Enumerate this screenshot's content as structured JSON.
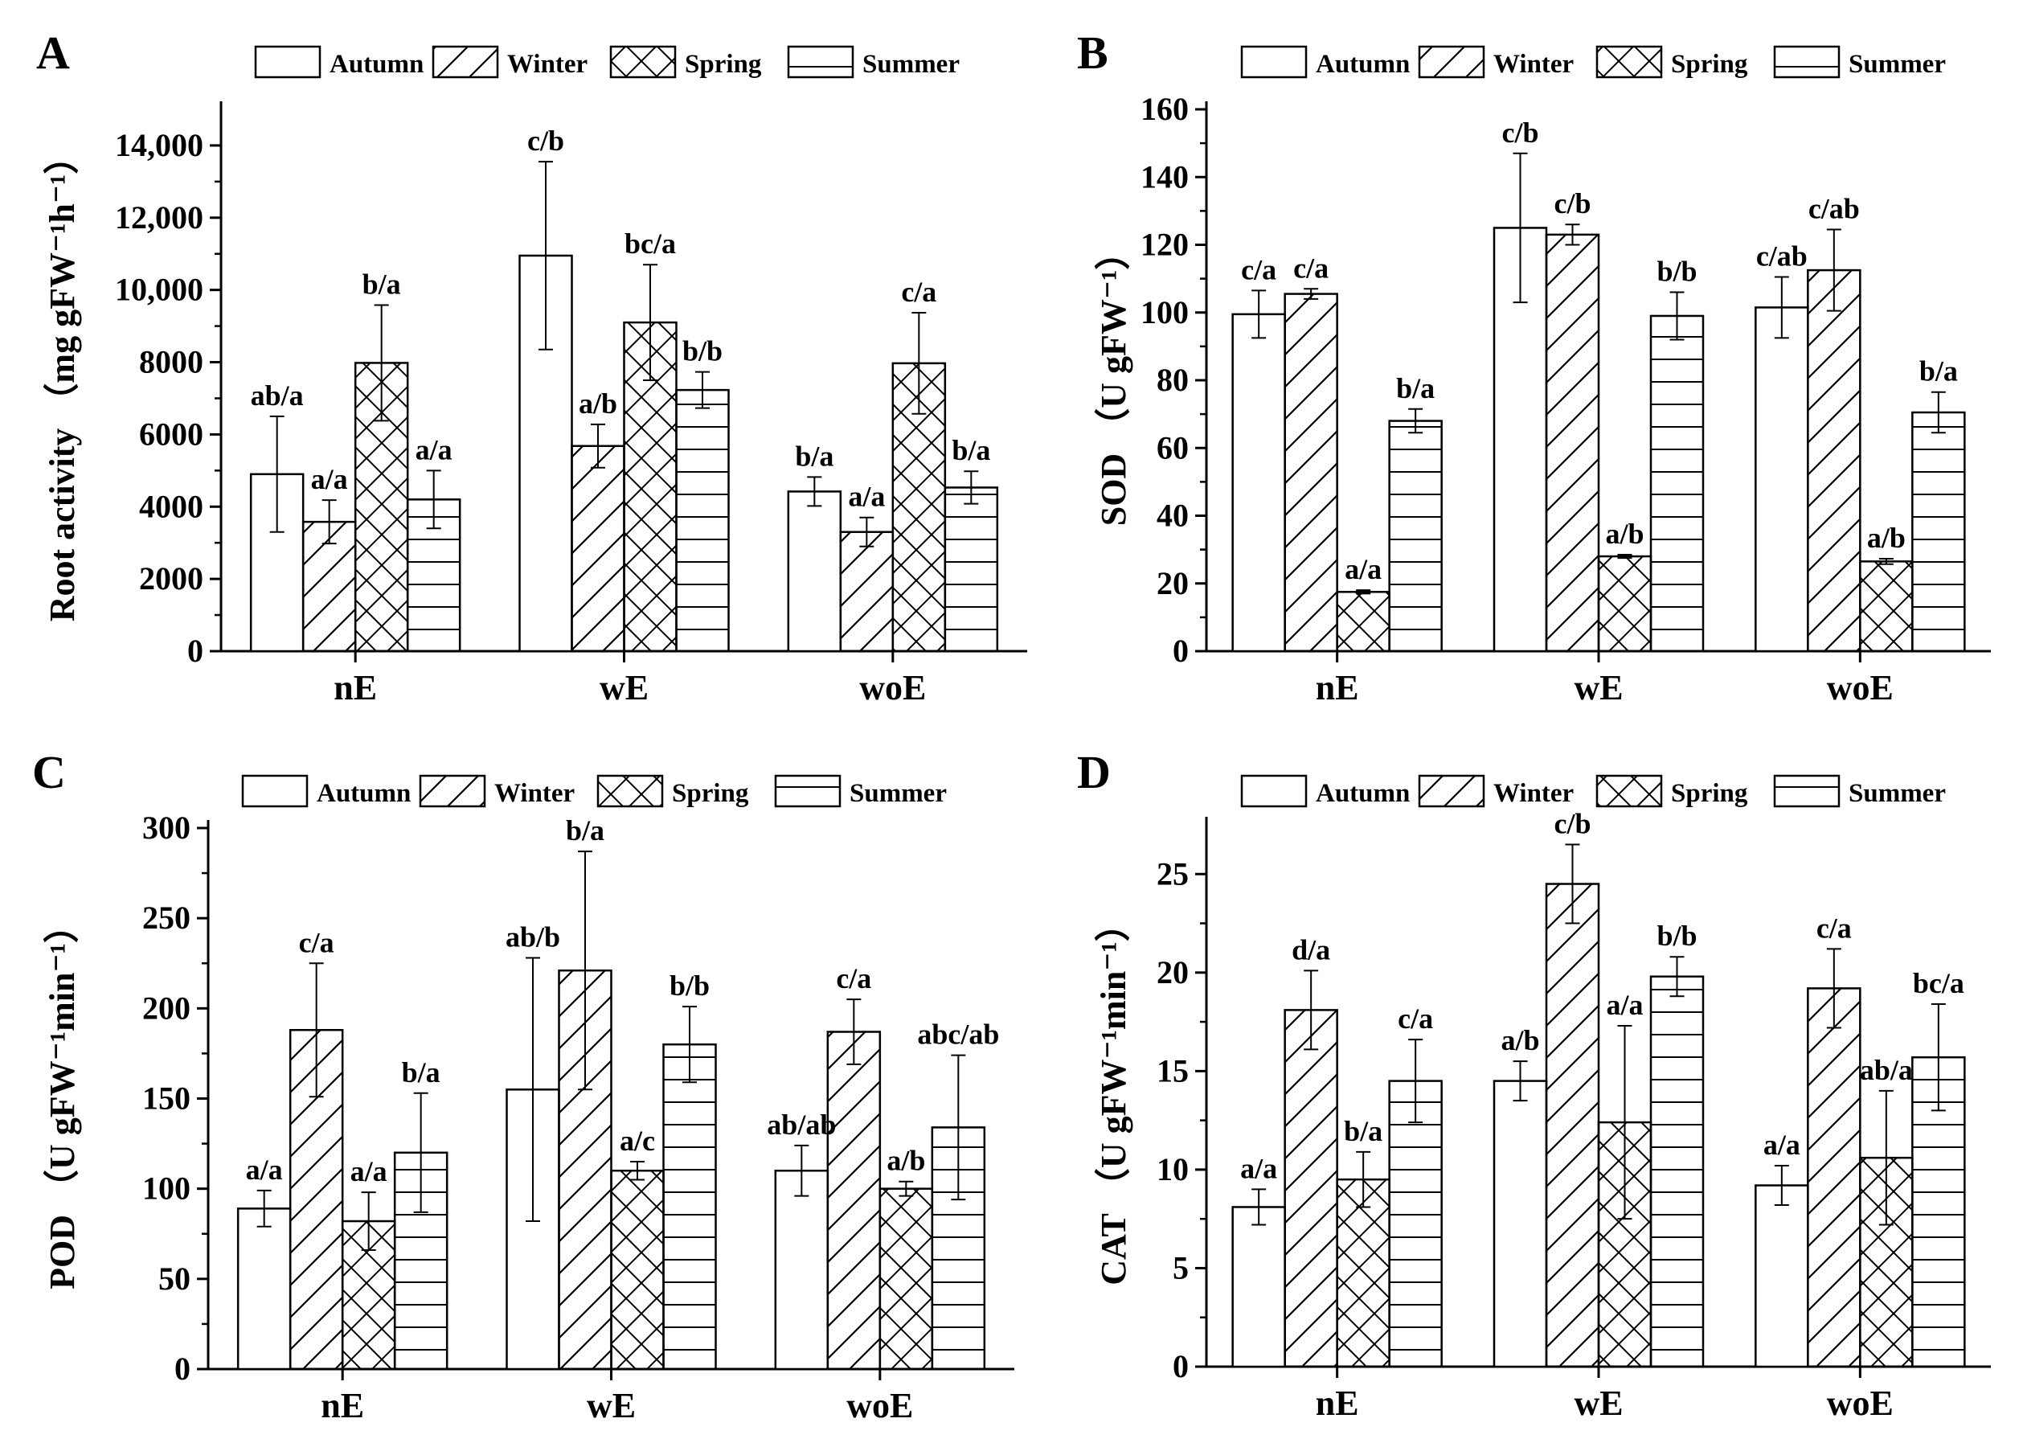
{
  "legend_labels": [
    "Autumn",
    "Winter",
    "Spring",
    "Summer"
  ],
  "chart_data": [
    {
      "panel": "A",
      "type": "bar",
      "ylabel_main": "Root activity",
      "ylabel_unit": "（mg gFW⁻¹h⁻¹）",
      "categories": [
        "nE",
        "wE",
        "woE"
      ],
      "ylim": [
        0,
        15000
      ],
      "yticks": [
        0,
        2000,
        4000,
        6000,
        8000,
        10000,
        12000,
        14000
      ],
      "ytick_labels": [
        "0",
        "2000",
        "4000",
        "6000",
        "8000",
        "10,000",
        "12,000",
        "14,000"
      ],
      "legend": "top",
      "series": [
        {
          "name": "Autumn",
          "values": [
            4900,
            10950,
            4420
          ],
          "errors": [
            1600,
            2600,
            400
          ],
          "labels": [
            "ab/a",
            "c/b",
            "b/a"
          ]
        },
        {
          "name": "Winter",
          "values": [
            3580,
            5680,
            3300
          ],
          "errors": [
            600,
            600,
            400
          ],
          "labels": [
            "a/a",
            "a/b",
            "a/a"
          ]
        },
        {
          "name": "Spring",
          "values": [
            7980,
            9100,
            7970
          ],
          "errors": [
            1600,
            1600,
            1400
          ],
          "labels": [
            "b/a",
            "bc/a",
            "c/a"
          ]
        },
        {
          "name": "Summer",
          "values": [
            4200,
            7230,
            4530
          ],
          "errors": [
            800,
            500,
            450
          ],
          "labels": [
            "a/a",
            "b/b",
            "b/a"
          ]
        }
      ]
    },
    {
      "panel": "B",
      "type": "bar",
      "ylabel_main": "SOD",
      "ylabel_unit": "（U gFW⁻¹）",
      "categories": [
        "nE",
        "wE",
        "woE"
      ],
      "ylim": [
        0,
        160
      ],
      "yticks": [
        0,
        20,
        40,
        60,
        80,
        100,
        120,
        140,
        160
      ],
      "ytick_labels": [
        "0",
        "20",
        "40",
        "60",
        "80",
        "100",
        "120",
        "140",
        "160"
      ],
      "legend": "top",
      "series": [
        {
          "name": "Autumn",
          "values": [
            99.5,
            125,
            101.5
          ],
          "errors": [
            7,
            22,
            9
          ],
          "labels": [
            "c/a",
            "c/b",
            "c/ab"
          ]
        },
        {
          "name": "Winter",
          "values": [
            105.5,
            123,
            112.5
          ],
          "errors": [
            1.5,
            3,
            12
          ],
          "labels": [
            "c/a",
            "c/b",
            "c/ab"
          ]
        },
        {
          "name": "Spring",
          "values": [
            17.5,
            28,
            26.5
          ],
          "errors": [
            0.5,
            0.5,
            0.8
          ],
          "labels": [
            "a/a",
            "a/b",
            "a/b"
          ]
        },
        {
          "name": "Summer",
          "values": [
            68,
            99,
            70.5
          ],
          "errors": [
            3.5,
            7,
            6
          ],
          "labels": [
            "b/a",
            "b/b",
            "b/a"
          ]
        }
      ]
    },
    {
      "panel": "C",
      "type": "bar",
      "ylabel_main": "POD",
      "ylabel_unit": "（U gFW⁻¹min⁻¹）",
      "categories": [
        "nE",
        "wE",
        "woE"
      ],
      "ylim": [
        0,
        300
      ],
      "yticks": [
        0,
        50,
        100,
        150,
        200,
        250,
        300
      ],
      "ytick_labels": [
        "0",
        "50",
        "100",
        "150",
        "200",
        "250",
        "300"
      ],
      "legend": "top",
      "series": [
        {
          "name": "Autumn",
          "values": [
            89,
            155,
            110
          ],
          "errors": [
            10,
            73,
            14
          ],
          "labels": [
            "a/a",
            "ab/b",
            "ab/ab"
          ]
        },
        {
          "name": "Winter",
          "values": [
            188,
            221,
            187
          ],
          "errors": [
            37,
            66,
            18
          ],
          "labels": [
            "c/a",
            "b/a",
            "c/a"
          ]
        },
        {
          "name": "Spring",
          "values": [
            82,
            110,
            100
          ],
          "errors": [
            16,
            5,
            4
          ],
          "labels": [
            "a/a",
            "a/c",
            "a/b"
          ]
        },
        {
          "name": "Summer",
          "values": [
            120,
            180,
            134
          ],
          "errors": [
            33,
            21,
            40
          ],
          "labels": [
            "b/a",
            "b/b",
            "abc/ab"
          ]
        }
      ]
    },
    {
      "panel": "D",
      "type": "bar",
      "ylabel_main": "CAT",
      "ylabel_unit": "（U gFW⁻¹min⁻¹）",
      "categories": [
        "nE",
        "wE",
        "woE"
      ],
      "ylim": [
        0,
        27.5
      ],
      "yticks": [
        0,
        5,
        10,
        15,
        20,
        25
      ],
      "ytick_labels": [
        "0",
        "5",
        "10",
        "15",
        "20",
        "25"
      ],
      "legend": "top",
      "series": [
        {
          "name": "Autumn",
          "values": [
            8.1,
            14.5,
            9.2
          ],
          "errors": [
            0.9,
            1.0,
            1.0
          ],
          "labels": [
            "a/a",
            "a/b",
            "a/a"
          ]
        },
        {
          "name": "Winter",
          "values": [
            18.1,
            24.5,
            19.2
          ],
          "errors": [
            2.0,
            2.0,
            2.0
          ],
          "labels": [
            "d/a",
            "c/b",
            "c/a"
          ]
        },
        {
          "name": "Spring",
          "values": [
            9.5,
            12.4,
            10.6
          ],
          "errors": [
            1.4,
            4.9,
            3.4
          ],
          "labels": [
            "b/a",
            "a/a",
            "ab/a"
          ]
        },
        {
          "name": "Summer",
          "values": [
            14.5,
            19.8,
            15.7
          ],
          "errors": [
            2.1,
            1.0,
            2.7
          ],
          "labels": [
            "c/a",
            "b/b",
            "bc/a"
          ]
        }
      ]
    }
  ]
}
